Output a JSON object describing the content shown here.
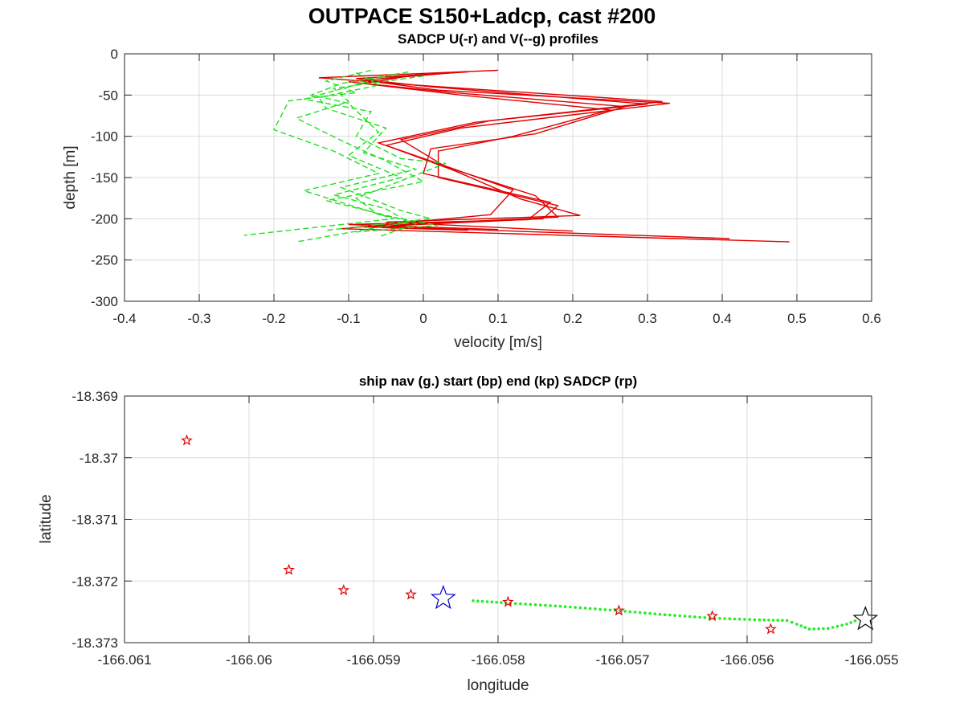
{
  "figure_title": "OUTPACE S150+Ladcp, cast #200",
  "colors": {
    "u_series": "#e00000",
    "v_series": "#1ee01e",
    "ship_nav": "#22ee22",
    "sadcp_points": "#e00000",
    "start_marker": "#0000cc",
    "end_marker": "#000000",
    "grid": "#dcdcdc",
    "axes": "#262626"
  },
  "chart_data": [
    {
      "type": "line",
      "title": "SADCP U(-r) and V(--g) profiles",
      "xlabel": "velocity [m/s]",
      "ylabel": "depth [m]",
      "xlim": [
        -0.4,
        0.6
      ],
      "ylim": [
        -300,
        0
      ],
      "xticks": [
        -0.4,
        -0.3,
        -0.2,
        -0.1,
        0,
        0.1,
        0.2,
        0.3,
        0.4,
        0.5,
        0.6
      ],
      "yticks": [
        0,
        -50,
        -100,
        -150,
        -200,
        -250,
        -300
      ],
      "xtick_labels": [
        "-0.4",
        "-0.3",
        "-0.2",
        "-0.1",
        "0",
        "0.1",
        "0.2",
        "0.3",
        "0.4",
        "0.5",
        "0.6"
      ],
      "ytick_labels": [
        "0",
        "-50",
        "-100",
        "-150",
        "-200",
        "-250",
        "-300"
      ],
      "grid": true,
      "series": [
        {
          "style": "solid",
          "color": "#e00000",
          "x": [
            0.1,
            -0.14,
            -0.01,
            0.32,
            0.07,
            -0.06,
            0.02,
            0.12,
            0.09,
            -0.11,
            0.49
          ],
          "y": [
            -20,
            -29,
            -38,
            -58,
            -83,
            -108,
            -133,
            -165,
            -195,
            -212,
            -228
          ]
        },
        {
          "style": "solid",
          "color": "#e00000",
          "x": [
            0.06,
            -0.09,
            0.01,
            0.3,
            0.09,
            -0.03,
            0.03,
            0.15,
            0.18,
            -0.07,
            0.41
          ],
          "y": [
            -22,
            -30,
            -40,
            -61,
            -81,
            -104,
            -137,
            -172,
            -198,
            -209,
            -224
          ]
        },
        {
          "style": "solid",
          "color": "#e00000",
          "x": [
            0.04,
            -0.08,
            0.02,
            0.33,
            0.05,
            -0.05,
            0.04,
            0.13,
            0.21,
            -0.05,
            0.2
          ],
          "y": [
            -23,
            -32,
            -44,
            -60,
            -90,
            -111,
            -141,
            -176,
            -196,
            -204,
            -215
          ]
        },
        {
          "style": "solid",
          "color": "#e00000",
          "x": [
            0.0,
            -0.1,
            0.04,
            0.27,
            0.15,
            0.01,
            0.0,
            0.17,
            0.14,
            -0.1,
            0.1
          ],
          "y": [
            -25,
            -34,
            -47,
            -64,
            -97,
            -115,
            -145,
            -180,
            -201,
            -207,
            -213
          ]
        },
        {
          "style": "solid",
          "color": "#e00000",
          "x": [
            -0.02,
            -0.08,
            0.05,
            0.25,
            0.12,
            0.02,
            0.02,
            0.18,
            0.16,
            -0.08,
            0.06
          ],
          "y": [
            -27,
            -36,
            -50,
            -68,
            -100,
            -118,
            -150,
            -184,
            -200,
            -210,
            -214
          ]
        },
        {
          "style": "dashed",
          "color": "#1ee01e",
          "x": [
            -0.07,
            -0.13,
            -0.09,
            -0.18,
            -0.2,
            -0.12,
            -0.06,
            -0.16,
            -0.1,
            -0.04,
            -0.24
          ],
          "y": [
            -20,
            -33,
            -47,
            -57,
            -92,
            -118,
            -145,
            -166,
            -183,
            -200,
            -220
          ]
        },
        {
          "style": "dashed",
          "color": "#1ee01e",
          "x": [
            -0.02,
            -0.11,
            -0.15,
            -0.1,
            -0.06,
            -0.1,
            -0.03,
            -0.12,
            -0.05,
            -0.02,
            -0.17
          ],
          "y": [
            -22,
            -36,
            -50,
            -60,
            -95,
            -123,
            -150,
            -171,
            -188,
            -204,
            -228
          ]
        },
        {
          "style": "dashed",
          "color": "#1ee01e",
          "x": [
            -0.09,
            -0.06,
            -0.14,
            -0.13,
            -0.05,
            -0.08,
            -0.01,
            -0.11,
            -0.03,
            0.01,
            -0.13
          ],
          "y": [
            -23,
            -38,
            -53,
            -66,
            -90,
            -120,
            -140,
            -162,
            -190,
            -200,
            -214
          ]
        },
        {
          "style": "dashed",
          "color": "#1ee01e",
          "x": [
            -0.04,
            -0.1,
            -0.16,
            -0.07,
            -0.09,
            -0.03,
            0.03,
            -0.09,
            -0.06,
            0.02,
            -0.09
          ],
          "y": [
            -25,
            -40,
            -55,
            -70,
            -100,
            -127,
            -133,
            -175,
            -195,
            -208,
            -216
          ]
        },
        {
          "style": "dashed",
          "color": "#1ee01e",
          "x": [
            0.0,
            -0.12,
            -0.1,
            -0.17,
            -0.11,
            -0.05,
            0.0,
            -0.13,
            -0.04,
            -0.01,
            -0.06
          ],
          "y": [
            -27,
            -42,
            -58,
            -78,
            -105,
            -130,
            -155,
            -178,
            -198,
            -206,
            -222
          ]
        }
      ]
    },
    {
      "type": "scatter",
      "title": "ship nav (g.) start (bp) end (kp) SADCP (rp)",
      "xlabel": "longitude",
      "ylabel": "latitude",
      "xlim": [
        -166.061,
        -166.055
      ],
      "ylim": [
        -18.373,
        -18.369
      ],
      "xticks": [
        -166.061,
        -166.06,
        -166.059,
        -166.058,
        -166.057,
        -166.056,
        -166.055
      ],
      "yticks": [
        -18.369,
        -18.37,
        -18.371,
        -18.372,
        -18.373
      ],
      "xtick_labels": [
        "-166.061",
        "-166.06",
        "-166.059",
        "-166.058",
        "-166.057",
        "-166.056",
        "-166.055"
      ],
      "ytick_labels": [
        "-18.369",
        "-18.37",
        "-18.371",
        "-18.372",
        "-18.373"
      ],
      "grid": true,
      "ship_nav": {
        "lon": [
          -166.0582,
          -166.0579,
          -166.0575,
          -166.0571,
          -166.0567,
          -166.0563,
          -166.0559,
          -166.0556,
          -166.05535,
          -166.0551
        ],
        "lat": [
          -18.37232,
          -18.37236,
          -18.37241,
          -18.37247,
          -18.37254,
          -18.3726,
          -18.37263,
          -18.37265,
          -18.37276,
          -18.37262
        ]
      },
      "ship_nav_gap": {
        "lon": [
          -166.0582,
          -166.0579,
          -166.0575,
          -166.0571,
          -166.0567,
          -166.0563,
          -166.0559,
          -166.05568,
          -166.0556,
          -166.0555,
          -166.05535,
          -166.0552,
          -166.0551
        ],
        "lat": [
          -18.37232,
          -18.37236,
          -18.37241,
          -18.37247,
          -18.37254,
          -18.3726,
          -18.37263,
          -18.37264,
          -18.3727,
          -18.37278,
          -18.37277,
          -18.3727,
          -18.37262
        ]
      },
      "sadcp": {
        "lon": [
          -166.0605,
          -166.05968,
          -166.05924,
          -166.0587,
          -166.05792,
          -166.05703,
          -166.05628,
          -166.05581
        ],
        "lat": [
          -18.36972,
          -18.37182,
          -18.37215,
          -18.37222,
          -18.37234,
          -18.37248,
          -18.37257,
          -18.37278
        ]
      },
      "start": {
        "lon": -166.05844,
        "lat": -18.37228
      },
      "end": {
        "lon": -166.05505,
        "lat": -18.37262
      }
    }
  ]
}
